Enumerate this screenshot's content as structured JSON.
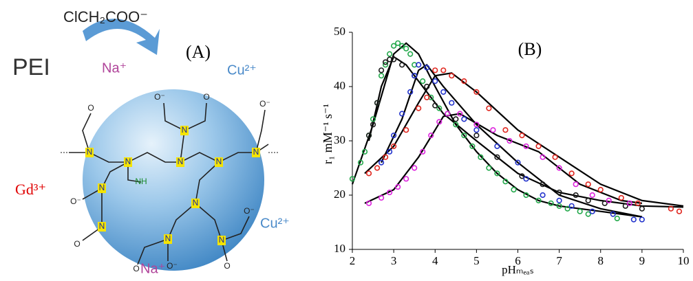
{
  "figure_a": {
    "reagent": "ClCH₂COO⁻",
    "polymer": "PEI",
    "panel_label": "(A)",
    "ions": [
      "Na⁺",
      "Cu²⁺",
      "Cu²⁺",
      "Na⁺"
    ],
    "gd_label": "Gd³⁺",
    "atoms": [
      "N",
      "N",
      "N",
      "N",
      "N",
      "N",
      "N",
      "NH",
      "N",
      "N",
      "N",
      "N",
      "O",
      "O⁻",
      "O⁻",
      "O",
      "O⁻",
      "O",
      "O⁻",
      "O",
      "O⁻",
      "O"
    ]
  },
  "chart_data": {
    "type": "scatter",
    "title": "(B)",
    "x_label": "pHₘₑₐₛ",
    "y_label": "r₁ mM⁻¹ s⁻¹",
    "xlim": [
      2,
      10
    ],
    "xticks": [
      2,
      3,
      4,
      5,
      6,
      7,
      8,
      9,
      10
    ],
    "ylim": [
      10,
      50
    ],
    "yticks": [
      10,
      20,
      30,
      40,
      50
    ],
    "series": [
      {
        "mode": "markers",
        "color": "#22a84a",
        "x": [
          2.0,
          2.2,
          2.3,
          2.4,
          2.5,
          2.6,
          2.7,
          2.8,
          2.9,
          3.0,
          3.1,
          3.2,
          3.3,
          3.4,
          3.5,
          3.7,
          3.9,
          4.1,
          4.3,
          4.5,
          4.7,
          4.9,
          5.1,
          5.3,
          5.5,
          5.7,
          5.9,
          6.2,
          6.5,
          6.8,
          7.0,
          7.2,
          7.5,
          7.7,
          8.4
        ],
        "values": [
          23,
          26,
          28,
          31,
          34,
          37,
          42,
          44,
          46,
          47.5,
          48,
          47.5,
          47,
          46,
          44,
          41,
          38,
          36,
          35,
          33,
          31,
          29,
          27,
          25,
          24,
          22.5,
          21,
          20,
          19,
          18.5,
          18,
          17.5,
          17,
          16.5,
          15.7
        ]
      },
      {
        "mode": "markers",
        "color": "#1a1a1a",
        "x": [
          2.4,
          2.5,
          2.6,
          2.7,
          2.8,
          2.9,
          3.0,
          3.2,
          3.5,
          3.8,
          4.0,
          4.5,
          5.0,
          5.5,
          6.1,
          6.6,
          7.0,
          7.4,
          7.7,
          8.1,
          8.6,
          9.0
        ],
        "values": [
          31,
          33,
          37,
          43,
          44.5,
          45,
          45,
          44,
          42,
          40,
          36.5,
          34,
          31,
          27,
          23.5,
          22,
          20.5,
          20,
          19,
          18.5,
          18,
          17.5
        ]
      },
      {
        "mode": "markers",
        "color": "#2233cc",
        "x": [
          2.7,
          2.9,
          3.0,
          3.2,
          3.4,
          3.5,
          3.6,
          3.8,
          4.0,
          4.2,
          4.4,
          4.7,
          5.0,
          5.5,
          6.0,
          6.2,
          6.6,
          7.0,
          7.3,
          7.8,
          8.3,
          8.8,
          9.0
        ],
        "values": [
          26,
          28,
          31,
          35,
          39,
          42,
          44,
          43.5,
          41,
          39,
          37,
          34,
          32,
          29,
          26,
          23,
          20,
          19,
          18,
          17,
          16.5,
          15.5,
          15.5
        ]
      },
      {
        "mode": "markers",
        "color": "#e0261e",
        "x": [
          2.4,
          2.6,
          2.8,
          3.0,
          3.3,
          3.6,
          3.8,
          4.0,
          4.2,
          4.4,
          4.7,
          5.0,
          5.3,
          5.7,
          6.1,
          6.5,
          6.9,
          7.3,
          7.7,
          8.0,
          8.5,
          8.9,
          9.7,
          9.9
        ],
        "values": [
          24,
          25,
          27,
          29,
          32,
          36,
          38,
          43,
          43,
          42,
          41,
          39,
          36,
          32,
          31,
          29,
          27,
          24,
          22,
          21,
          19.5,
          18.5,
          17.5,
          17
        ]
      },
      {
        "mode": "markers",
        "color": "#dd22dd",
        "x": [
          2.4,
          2.7,
          2.9,
          3.1,
          3.3,
          3.5,
          3.7,
          3.9,
          4.1,
          4.3,
          4.6,
          5.0,
          5.4,
          5.8,
          6.2,
          6.6,
          7.0,
          7.4,
          7.8,
          8.2,
          8.7
        ],
        "values": [
          18.5,
          19.5,
          20.5,
          21.5,
          23,
          25,
          28,
          31,
          33.5,
          35,
          35,
          33,
          32,
          30,
          29,
          27,
          25,
          22,
          20,
          19,
          18.5
        ]
      },
      {
        "mode": "line",
        "color": "#000000",
        "x": [
          2.0,
          2.5,
          3.0,
          3.3,
          3.6,
          4.0,
          4.5,
          5.0,
          5.5,
          6.0,
          6.5,
          7.0,
          8.0,
          9.0
        ],
        "values": [
          22,
          33,
          46,
          48,
          46,
          40,
          33,
          28,
          24,
          21,
          19,
          18,
          17,
          16
        ]
      },
      {
        "mode": "line",
        "color": "#000000",
        "x": [
          2.4,
          2.7,
          3.0,
          3.3,
          3.7,
          4.2,
          5.0,
          6.0,
          7.0,
          8.0,
          9.0,
          10.0
        ],
        "values": [
          30,
          40,
          45.5,
          44,
          40,
          35,
          30,
          24,
          20.5,
          19,
          18,
          17.8
        ]
      },
      {
        "mode": "line",
        "color": "#000000",
        "x": [
          2.7,
          3.2,
          3.6,
          3.8,
          4.2,
          5.0,
          6.0,
          7.0,
          8.0,
          9.0
        ],
        "values": [
          26,
          34,
          43,
          44,
          40,
          33,
          26,
          20,
          17.5,
          16
        ]
      },
      {
        "mode": "line",
        "color": "#000000",
        "x": [
          2.3,
          3.0,
          3.6,
          4.0,
          4.4,
          5.0,
          6.0,
          7.0,
          8.0,
          9.0,
          10.0
        ],
        "values": [
          24,
          29,
          37,
          42,
          42.5,
          39,
          32,
          27,
          22,
          19,
          18
        ]
      },
      {
        "mode": "line",
        "color": "#000000",
        "x": [
          2.3,
          3.0,
          3.6,
          4.2,
          4.6,
          5.5,
          6.5,
          7.5,
          8.5,
          9.0
        ],
        "values": [
          18.5,
          21,
          27,
          34.5,
          35,
          31,
          28,
          22,
          19,
          18.5
        ]
      }
    ]
  }
}
